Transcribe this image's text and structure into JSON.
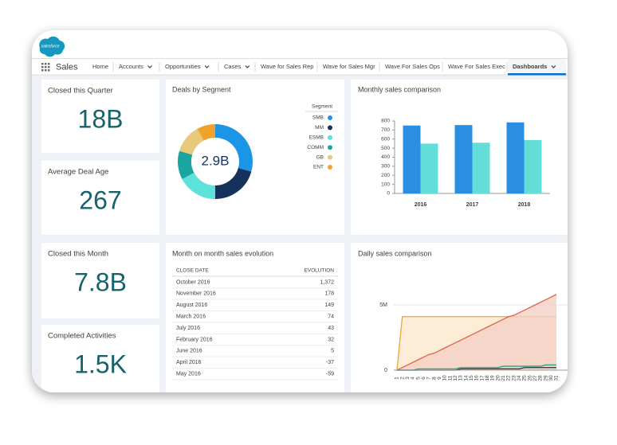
{
  "app": {
    "logo": "salesforce",
    "name": "Sales"
  },
  "nav": {
    "tabs": [
      {
        "label": "Home"
      },
      {
        "label": "Accounts",
        "menu": true
      },
      {
        "label": "Opportunities",
        "menu": true
      },
      {
        "label": "Cases",
        "menu": true
      },
      {
        "label": "Wave for Sales Rep"
      },
      {
        "label": "Wave for Sales Mgr"
      },
      {
        "label": "Wave For Sales Ops"
      },
      {
        "label": "Wave For Sales Exec"
      },
      {
        "label": "Dashboards",
        "menu": true,
        "active": true
      }
    ]
  },
  "metrics": [
    {
      "title": "Closed this Quarter",
      "value": "18B"
    },
    {
      "title": "Average Deal Age",
      "value": "267"
    },
    {
      "title": "Closed this Month",
      "value": "7.8B"
    },
    {
      "title": "Completed Activities",
      "value": "1.5K"
    }
  ],
  "deals_by_segment": {
    "type": "donut",
    "title": "Deals by Segment",
    "total_label": "2.9B",
    "legend_title": "Segment",
    "segments": [
      {
        "name": "SMB",
        "color": "#1b96e6",
        "value": 0.85
      },
      {
        "name": "MM",
        "color": "#16325c",
        "value": 0.6
      },
      {
        "name": "ESMB",
        "color": "#5ee0db",
        "value": 0.5
      },
      {
        "name": "COMM",
        "color": "#1aa5a0",
        "value": 0.36
      },
      {
        "name": "GB",
        "color": "#e8c87a",
        "value": 0.36
      },
      {
        "name": "ENT",
        "color": "#f0a32a",
        "value": 0.23
      }
    ]
  },
  "monthly_sales": {
    "type": "bar",
    "title": "Monthly sales comparison",
    "categories": [
      "2016",
      "2017",
      "2018"
    ],
    "series": [
      {
        "color": "#2a8fe3",
        "values": [
          750,
          755,
          785
        ]
      },
      {
        "color": "#62ddd8",
        "values": [
          550,
          560,
          590
        ]
      }
    ],
    "ylim": [
      0,
      800
    ],
    "yticks": [
      0,
      100,
      200,
      300,
      400,
      500,
      600,
      700,
      800
    ]
  },
  "sales_evolution": {
    "title": "Month on month sales evolution",
    "columns": [
      "CLOSE DATE",
      "EVOLUTION"
    ],
    "rows": [
      [
        "October 2016",
        "1,372"
      ],
      [
        "November 2016",
        "178"
      ],
      [
        "August 2016",
        "149"
      ],
      [
        "March 2016",
        "74"
      ],
      [
        "July 2016",
        "43"
      ],
      [
        "February 2016",
        "32"
      ],
      [
        "June 2016",
        "5"
      ],
      [
        "April 2016",
        "-37"
      ],
      [
        "May 2016",
        "-59"
      ]
    ]
  },
  "daily_sales": {
    "type": "line",
    "title": "Daily sales comparison",
    "x": [
      1,
      2,
      3,
      4,
      5,
      6,
      7,
      8,
      9,
      10,
      11,
      12,
      13,
      14,
      15,
      16,
      17,
      18,
      19,
      20,
      21,
      22,
      23,
      24,
      25,
      26,
      27,
      28,
      29,
      30,
      31
    ],
    "xlim": [
      1,
      31
    ],
    "ylim": [
      0,
      6
    ],
    "yticks": [
      0,
      {
        "value": 5,
        "label": "5M"
      }
    ],
    "series": [
      {
        "color": "#f0a33a",
        "fill": "#fde9cc",
        "values": [
          0,
          4.1,
          4.1,
          4.1,
          4.1,
          4.1,
          4.1,
          4.1,
          4.1,
          4.1,
          4.1,
          4.1,
          4.1,
          4.1,
          4.1,
          4.1,
          4.1,
          4.1,
          4.1,
          4.1,
          4.1,
          4.1,
          4.1,
          4.1,
          4.1,
          4.1,
          4.1,
          4.1,
          4.1,
          4.1,
          4.1
        ]
      },
      {
        "color": "#e0604a",
        "fill": "#f4cfc4",
        "values": [
          0,
          0.2,
          0.4,
          0.6,
          0.8,
          1.0,
          1.2,
          1.3,
          1.5,
          1.7,
          1.9,
          2.1,
          2.3,
          2.5,
          2.7,
          2.9,
          3.1,
          3.3,
          3.5,
          3.7,
          3.9,
          4.1,
          4.2,
          4.4,
          4.6,
          4.8,
          5.0,
          5.2,
          5.4,
          5.6,
          5.8
        ]
      },
      {
        "color": "#2fa37a",
        "values": [
          0,
          0,
          0,
          0,
          0.1,
          0.1,
          0.1,
          0.1,
          0.1,
          0.1,
          0.1,
          0.1,
          0.2,
          0.2,
          0.2,
          0.2,
          0.2,
          0.2,
          0.2,
          0.2,
          0.3,
          0.3,
          0.3,
          0.3,
          0.3,
          0.3,
          0.3,
          0.3,
          0.4,
          0.4,
          0.4
        ]
      },
      {
        "color": "#16325c",
        "values": [
          0,
          0,
          0,
          0,
          0,
          0,
          0,
          0,
          0,
          0,
          0,
          0,
          0.1,
          0.1,
          0.1,
          0.1,
          0.1,
          0.1,
          0.1,
          0.1,
          0.1,
          0.1,
          0.1,
          0.1,
          0.2,
          0.2,
          0.2,
          0.2,
          0.2,
          0.2,
          0.2
        ]
      }
    ]
  }
}
